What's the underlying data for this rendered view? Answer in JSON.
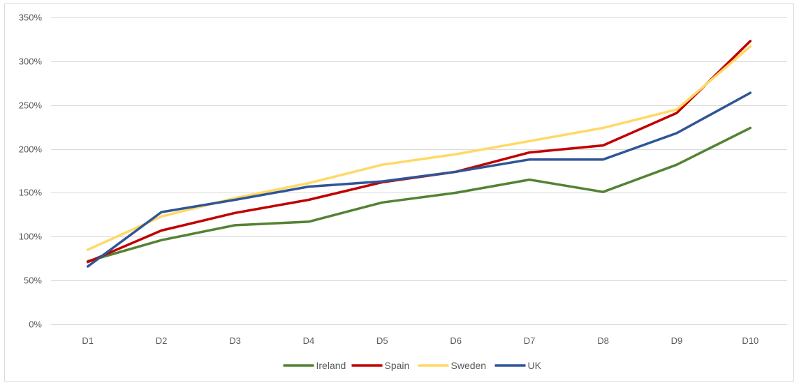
{
  "chart_data": {
    "type": "line",
    "title": "",
    "xlabel": "",
    "ylabel": "",
    "categories": [
      "D1",
      "D2",
      "D3",
      "D4",
      "D5",
      "D6",
      "D7",
      "D8",
      "D9",
      "D10"
    ],
    "ylim": [
      0,
      3.5
    ],
    "yticks": [
      0,
      0.5,
      1.0,
      1.5,
      2.0,
      2.5,
      3.0,
      3.5
    ],
    "ytick_labels": [
      "0%",
      "50%",
      "100%",
      "150%",
      "200%",
      "250%",
      "300%",
      "350%"
    ],
    "grid": true,
    "legend_position": "bottom",
    "series": [
      {
        "name": "Ireland",
        "color": "#548235",
        "values": [
          0.72,
          0.96,
          1.13,
          1.17,
          1.39,
          1.5,
          1.65,
          1.51,
          1.82,
          2.24
        ]
      },
      {
        "name": "Spain",
        "color": "#C00000",
        "values": [
          0.71,
          1.07,
          1.27,
          1.42,
          1.62,
          1.74,
          1.96,
          2.04,
          2.41,
          3.23
        ]
      },
      {
        "name": "Sweden",
        "color": "#FFD966",
        "values": [
          0.85,
          1.23,
          1.44,
          1.61,
          1.82,
          1.94,
          2.09,
          2.24,
          2.45,
          3.17
        ]
      },
      {
        "name": "UK",
        "color": "#2F5597",
        "values": [
          0.66,
          1.28,
          1.42,
          1.57,
          1.63,
          1.74,
          1.88,
          1.88,
          2.18,
          2.64
        ]
      }
    ]
  }
}
